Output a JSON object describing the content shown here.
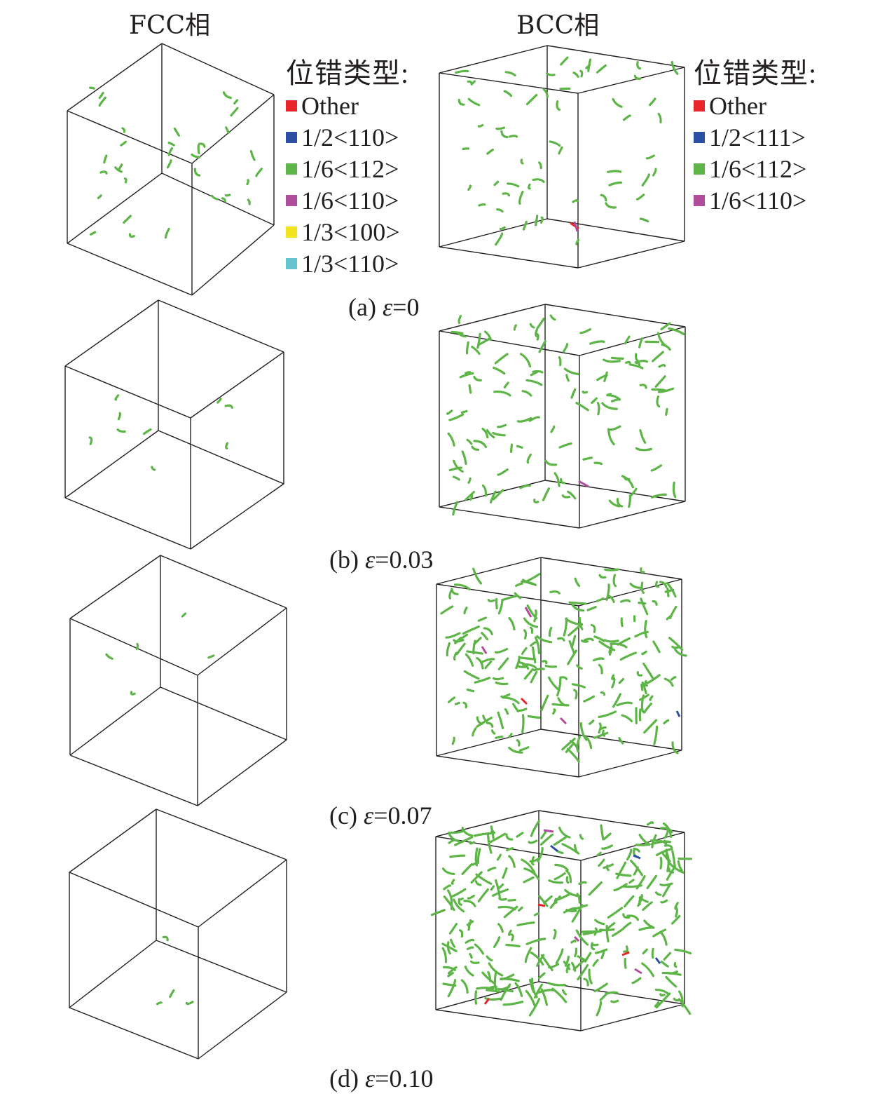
{
  "headers": {
    "fcc": "FCC相",
    "bcc": "BCC相"
  },
  "legend_fcc": {
    "title": "位错类型:",
    "items": [
      {
        "label": "Other",
        "color": "#e8252a"
      },
      {
        "label": "1/2<110>",
        "color": "#2b4fa3"
      },
      {
        "label": "1/6<112>",
        "color": "#5db547"
      },
      {
        "label": "1/6<110>",
        "color": "#b04d9b"
      },
      {
        "label": "1/3<100>",
        "color": "#f2e321"
      },
      {
        "label": "1/3<110>",
        "color": "#66c3d0"
      }
    ]
  },
  "legend_bcc": {
    "title": "位错类型:",
    "items": [
      {
        "label": "Other",
        "color": "#e8252a"
      },
      {
        "label": "1/2<111>",
        "color": "#2b4fa3"
      },
      {
        "label": "1/6<112>",
        "color": "#5db547"
      },
      {
        "label": "1/6<110>",
        "color": "#b04d9b"
      }
    ]
  },
  "panels": [
    {
      "label": "(a)",
      "symbol": "ε",
      "value": "=0"
    },
    {
      "label": "(b)",
      "symbol": "ε",
      "value": "=0.03"
    },
    {
      "label": "(c)",
      "symbol": "ε",
      "value": "=0.07"
    },
    {
      "label": "(d)",
      "symbol": "ε",
      "value": "=0.10"
    }
  ],
  "colors": {
    "green": "#5db547",
    "red": "#e8252a",
    "blue": "#2b4fa3",
    "magenta": "#b04d9b",
    "box": "#231f20"
  }
}
